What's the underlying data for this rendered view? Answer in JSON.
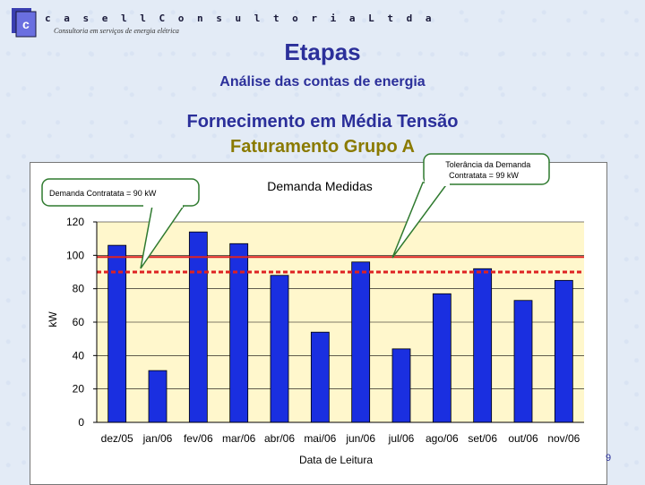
{
  "header": {
    "logo_text": "c a s e l l  C o n s u l t o r i a  L t d a",
    "logo_tagline": "Consultoria em serviços de energia elétrica"
  },
  "slide": {
    "title": "Etapas",
    "subtitle": "Análise das contas de energia",
    "heading": "Fornecimento em Média Tensão",
    "subheading": "Faturamento Grupo A",
    "page_number": "9"
  },
  "colors": {
    "bar": "#1a2fe0",
    "plot_bg": "#fff7cc",
    "tolerance_line": "#dd2222",
    "contract_line": "#dd2222",
    "title_blue": "#2b2f9a",
    "subheading_gold": "#8a7a00"
  },
  "chart_data": {
    "type": "bar",
    "title": "Demanda Medidas",
    "xlabel": "Data de Leitura",
    "ylabel": "kW",
    "ylim": [
      0,
      120
    ],
    "yticks": [
      0,
      20,
      40,
      60,
      80,
      100,
      120
    ],
    "grid": true,
    "categories": [
      "dez/05",
      "jan/06",
      "fev/06",
      "mar/06",
      "abr/06",
      "mai/06",
      "jun/06",
      "jul/06",
      "ago/06",
      "set/06",
      "out/06",
      "nov/06"
    ],
    "values": [
      106,
      31,
      114,
      107,
      88,
      54,
      96,
      44,
      77,
      92,
      73,
      85
    ],
    "reference_lines": [
      {
        "label": "Tolerância da Demanda Contratata = 99 kW",
        "value": 99,
        "style": "solid"
      },
      {
        "label": "Demanda Contratata = 90 kW",
        "value": 90,
        "style": "dashed"
      }
    ]
  }
}
